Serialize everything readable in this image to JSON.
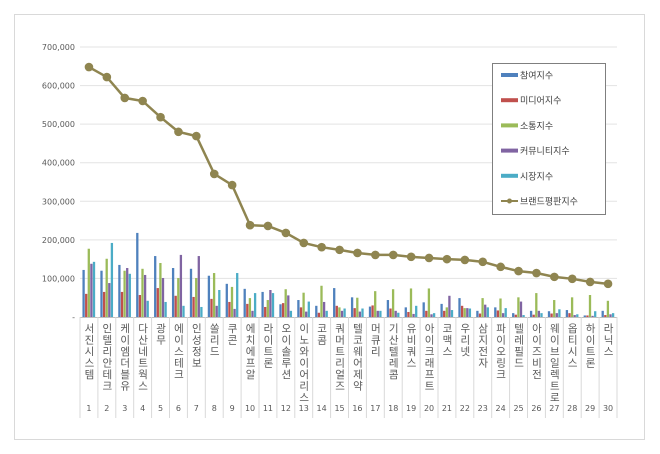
{
  "chart_data": {
    "type": "bar",
    "categories": [
      "서진시스템",
      "인텔리안테크",
      "케이엠더블유",
      "다산네트웍스",
      "광무",
      "에이스테크",
      "인성정보",
      "쏠리드",
      "쿠콘",
      "에치에프알",
      "라이트론",
      "오이솔루션",
      "이노와이어리스",
      "코콤",
      "쿼머트리얼즈",
      "텔코웨어제약",
      "머큐리",
      "기산텔레콤",
      "유비쿼스",
      "아이크래프트",
      "코맥스",
      "우리넷",
      "삼지전자",
      "파이오링크",
      "텔레필드",
      "아이즈비전",
      "웨이브일렉트로",
      "옵티시스",
      "하이트론",
      "라닉스"
    ],
    "category_numbers": [
      "1",
      "2",
      "3",
      "4",
      "5",
      "6",
      "7",
      "8",
      "9",
      "10",
      "11",
      "12",
      "13",
      "14",
      "15",
      "16",
      "17",
      "18",
      "19",
      "20",
      "21",
      "22",
      "23",
      "24",
      "25",
      "26",
      "27",
      "28",
      "29",
      "30"
    ],
    "ylim": [
      0,
      700000
    ],
    "yticks": [
      "-",
      "100,000",
      "200,000",
      "300,000",
      "400,000",
      "500,000",
      "600,000",
      "700,000"
    ],
    "grid": true,
    "legend_position": "right",
    "series": [
      {
        "name": "참여지수",
        "type": "bar",
        "color": "#4f81bd",
        "values": [
          122000,
          120000,
          135000,
          218000,
          158000,
          127000,
          125000,
          107000,
          86000,
          73000,
          65000,
          33000,
          44000,
          29000,
          75000,
          51000,
          27000,
          44000,
          25000,
          38000,
          34000,
          49000,
          16000,
          25000,
          10000,
          16000,
          15000,
          18000,
          4000,
          16000
        ]
      },
      {
        "name": "미디어지수",
        "type": "bar",
        "color": "#c0504d",
        "values": [
          60000,
          65000,
          65000,
          57000,
          75000,
          55000,
          52000,
          47000,
          39000,
          34000,
          26000,
          36000,
          25000,
          11000,
          29000,
          23000,
          30000,
          22000,
          13000,
          16000,
          16000,
          29000,
          9000,
          17000,
          6000,
          6000,
          9000,
          10000,
          4000,
          5000
        ]
      },
      {
        "name": "소통지수",
        "type": "bar",
        "color": "#9bbb59",
        "values": [
          177000,
          151000,
          120000,
          125000,
          140000,
          101000,
          101000,
          114000,
          78000,
          49000,
          44000,
          72000,
          63000,
          81000,
          25000,
          50000,
          67000,
          72000,
          74000,
          74000,
          25000,
          23000,
          49000,
          48000,
          51000,
          62000,
          44000,
          51000,
          57000,
          42000
        ]
      },
      {
        "name": "커뮤니티지수",
        "type": "bar",
        "color": "#8064a2",
        "values": [
          138000,
          88000,
          127000,
          109000,
          101000,
          161000,
          158000,
          29000,
          21000,
          16000,
          70000,
          56000,
          14000,
          39000,
          16000,
          14000,
          16000,
          16000,
          8000,
          7000,
          55000,
          23000,
          32000,
          10000,
          40000,
          16000,
          10000,
          5000,
          3000,
          7000
        ]
      },
      {
        "name": "시장지수",
        "type": "bar",
        "color": "#4bacc6",
        "values": [
          143000,
          192000,
          112000,
          42000,
          39000,
          29000,
          26000,
          70000,
          114000,
          62000,
          62000,
          16000,
          40000,
          16000,
          22000,
          22000,
          16000,
          11000,
          29000,
          10000,
          18000,
          22000,
          25000,
          23000,
          5000,
          10000,
          20000,
          7000,
          15000,
          10000
        ]
      },
      {
        "name": "브랜드평판지수",
        "type": "line",
        "color": "#8f8550",
        "values": [
          648000,
          622000,
          568000,
          560000,
          518000,
          480000,
          469000,
          371000,
          342000,
          238000,
          236000,
          218000,
          192000,
          181000,
          174000,
          166000,
          161000,
          161000,
          156000,
          153000,
          150000,
          148000,
          143000,
          130000,
          119000,
          114000,
          104000,
          99000,
          91000,
          86000
        ]
      }
    ]
  }
}
